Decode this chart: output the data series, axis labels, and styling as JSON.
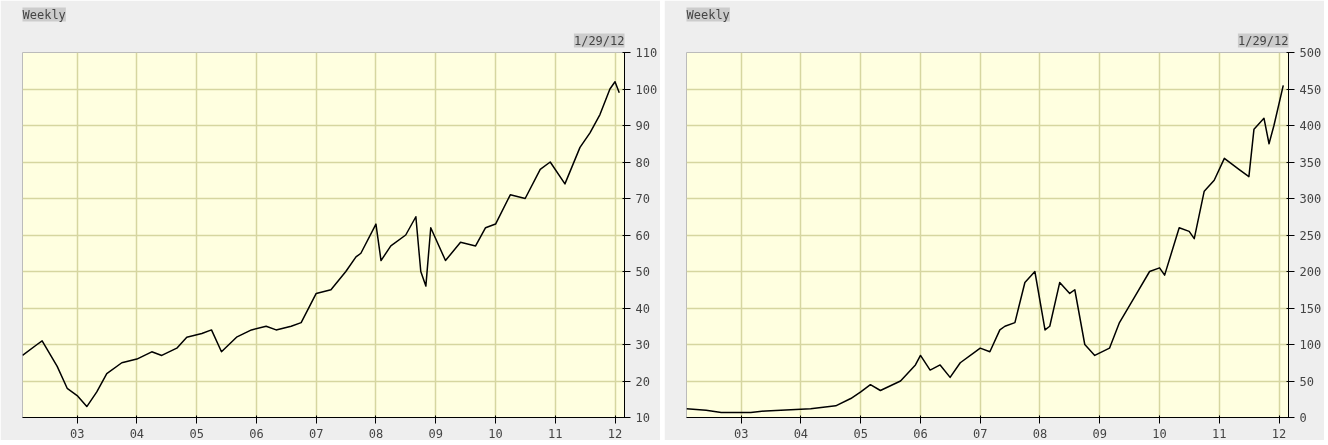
{
  "chart_data": [
    {
      "type": "line",
      "title": "Weekly",
      "subtitle": "1/29/12",
      "x": [
        "2002-02",
        "2002-05",
        "2002-06",
        "2002-09",
        "2002-11",
        "2003-01",
        "2003-03",
        "2003-05",
        "2003-07",
        "2003-10",
        "2004-01",
        "2004-04",
        "2004-06",
        "2004-09",
        "2004-11",
        "2005-02",
        "2005-04",
        "2005-06",
        "2005-09",
        "2005-12",
        "2006-03",
        "2006-05",
        "2006-08",
        "2006-10",
        "2007-01",
        "2007-04",
        "2007-07",
        "2007-09",
        "2007-10",
        "2008-01",
        "2008-02",
        "2008-04",
        "2008-07",
        "2008-09",
        "2008-10",
        "2008-11",
        "2008-12",
        "2009-03",
        "2009-06",
        "2009-09",
        "2009-11",
        "2010-01",
        "2010-04",
        "2010-07",
        "2010-10",
        "2010-12",
        "2011-03",
        "2011-06",
        "2011-08",
        "2011-10",
        "2011-12",
        "2012-01",
        "2012-01-27"
      ],
      "series": [
        {
          "color": "#000000",
          "values": [
            27,
            30,
            31,
            24,
            18,
            16,
            13,
            17,
            22,
            25,
            26,
            28,
            27,
            29,
            32,
            33,
            34,
            28,
            32,
            34,
            35,
            34,
            35,
            36,
            44,
            45,
            50,
            54,
            55,
            63,
            53,
            57,
            60,
            65,
            50,
            46,
            62,
            53,
            58,
            57,
            62,
            63,
            71,
            70,
            78,
            80,
            74,
            84,
            88,
            93,
            100,
            102,
            99
          ]
        }
      ],
      "xlim": [
        "2002-02-01",
        "2012-02-28"
      ],
      "xticks": [
        {
          "value": "2003-01-01",
          "label": "03"
        },
        {
          "value": "2004-01-01",
          "label": "04"
        },
        {
          "value": "2005-01-01",
          "label": "05"
        },
        {
          "value": "2006-01-01",
          "label": "06"
        },
        {
          "value": "2007-01-01",
          "label": "07"
        },
        {
          "value": "2008-01-01",
          "label": "08"
        },
        {
          "value": "2009-01-01",
          "label": "09"
        },
        {
          "value": "2010-01-01",
          "label": "10"
        },
        {
          "value": "2011-01-01",
          "label": "11"
        },
        {
          "value": "2012-01-01",
          "label": "12"
        }
      ],
      "ylim": [
        10,
        110
      ],
      "yticks": [
        10,
        20,
        30,
        40,
        50,
        60,
        70,
        80,
        90,
        100,
        110
      ],
      "grid": true
    },
    {
      "type": "line",
      "title": "Weekly",
      "subtitle": "1/29/12",
      "x": [
        "2002-02",
        "2002-06",
        "2002-09",
        "2003-03",
        "2003-06",
        "2003-12",
        "2004-03",
        "2004-08",
        "2004-11",
        "2005-01",
        "2005-03",
        "2005-05",
        "2005-09",
        "2005-12",
        "2006-01",
        "2006-03",
        "2006-05",
        "2006-07",
        "2006-09",
        "2006-12",
        "2007-01",
        "2007-03",
        "2007-05",
        "2007-06",
        "2007-08",
        "2007-10",
        "2007-12",
        "2008-02",
        "2008-03",
        "2008-05",
        "2008-07",
        "2008-08",
        "2008-10",
        "2008-12",
        "2009-03",
        "2009-05",
        "2009-08",
        "2009-11",
        "2010-01",
        "2010-02",
        "2010-05",
        "2010-07",
        "2010-08",
        "2010-10",
        "2010-12",
        "2011-02",
        "2011-05",
        "2011-07",
        "2011-08",
        "2011-10",
        "2011-11",
        "2011-12",
        "2012-01-27"
      ],
      "series": [
        {
          "color": "#000000",
          "values": [
            12,
            10,
            7,
            7,
            9,
            11,
            12,
            16,
            26,
            35,
            45,
            37,
            50,
            72,
            85,
            65,
            72,
            55,
            75,
            90,
            95,
            90,
            120,
            125,
            130,
            185,
            200,
            120,
            125,
            185,
            170,
            175,
            100,
            85,
            95,
            130,
            165,
            200,
            205,
            195,
            260,
            255,
            245,
            310,
            325,
            355,
            340,
            330,
            395,
            410,
            375,
            400,
            455
          ]
        }
      ],
      "xlim": [
        "2002-02-01",
        "2012-02-28"
      ],
      "xticks": [
        {
          "value": "2003-01-01",
          "label": "03"
        },
        {
          "value": "2004-01-01",
          "label": "04"
        },
        {
          "value": "2005-01-01",
          "label": "05"
        },
        {
          "value": "2006-01-01",
          "label": "06"
        },
        {
          "value": "2007-01-01",
          "label": "07"
        },
        {
          "value": "2008-01-01",
          "label": "08"
        },
        {
          "value": "2009-01-01",
          "label": "09"
        },
        {
          "value": "2010-01-01",
          "label": "10"
        },
        {
          "value": "2011-01-01",
          "label": "11"
        },
        {
          "value": "2012-01-01",
          "label": "12"
        }
      ],
      "ylim": [
        0,
        500
      ],
      "yticks": [
        0,
        50,
        100,
        150,
        200,
        250,
        300,
        350,
        400,
        450,
        500
      ],
      "grid": true
    }
  ]
}
